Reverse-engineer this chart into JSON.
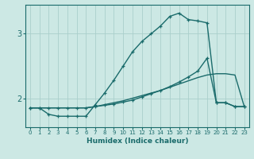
{
  "xlabel": "Humidex (Indice chaleur)",
  "bg_color": "#cce8e4",
  "grid_color": "#aacfcc",
  "line_color": "#1a6b6b",
  "xlim": [
    -0.5,
    23.5
  ],
  "ylim": [
    1.55,
    3.45
  ],
  "yticks": [
    2,
    3
  ],
  "xticks": [
    0,
    1,
    2,
    3,
    4,
    5,
    6,
    7,
    8,
    9,
    10,
    11,
    12,
    13,
    14,
    15,
    16,
    17,
    18,
    19,
    20,
    21,
    22,
    23
  ],
  "series": [
    {
      "x": [
        0,
        1,
        2,
        3,
        4,
        5,
        6,
        7,
        8,
        9,
        10,
        11,
        12,
        13,
        14,
        15,
        16,
        17,
        18,
        19,
        20,
        21,
        22,
        23
      ],
      "y": [
        1.85,
        1.85,
        1.85,
        1.85,
        1.85,
        1.85,
        1.85,
        1.87,
        1.9,
        1.93,
        1.96,
        2.0,
        2.04,
        2.08,
        2.12,
        2.17,
        2.22,
        2.27,
        2.32,
        2.36,
        2.38,
        2.38,
        2.36,
        1.87
      ],
      "marker": null,
      "linestyle": "-",
      "linewidth": 1.0
    },
    {
      "x": [
        0,
        1,
        2,
        3,
        4,
        5,
        6,
        7,
        8,
        9,
        10,
        11,
        12,
        13,
        14,
        15,
        16,
        17,
        18,
        19,
        20,
        21,
        22,
        23
      ],
      "y": [
        1.85,
        1.85,
        1.75,
        1.72,
        1.72,
        1.72,
        1.72,
        1.9,
        2.08,
        2.28,
        2.5,
        2.72,
        2.88,
        3.0,
        3.12,
        3.27,
        3.32,
        3.22,
        3.2,
        3.17,
        1.93,
        1.93,
        1.87,
        1.87
      ],
      "marker": "+",
      "linestyle": "-",
      "linewidth": 1.0
    },
    {
      "x": [
        0,
        1,
        2,
        3,
        4,
        5,
        6,
        7,
        8,
        9,
        10,
        11,
        12,
        13,
        14,
        15,
        16,
        17,
        18,
        19,
        20,
        21,
        22,
        23
      ],
      "y": [
        1.85,
        1.85,
        1.85,
        1.85,
        1.85,
        1.85,
        1.85,
        1.87,
        1.89,
        1.91,
        1.94,
        1.97,
        2.02,
        2.07,
        2.12,
        2.18,
        2.25,
        2.33,
        2.42,
        2.62,
        1.93,
        1.93,
        1.87,
        1.87
      ],
      "marker": "+",
      "linestyle": "-",
      "linewidth": 1.0
    }
  ]
}
